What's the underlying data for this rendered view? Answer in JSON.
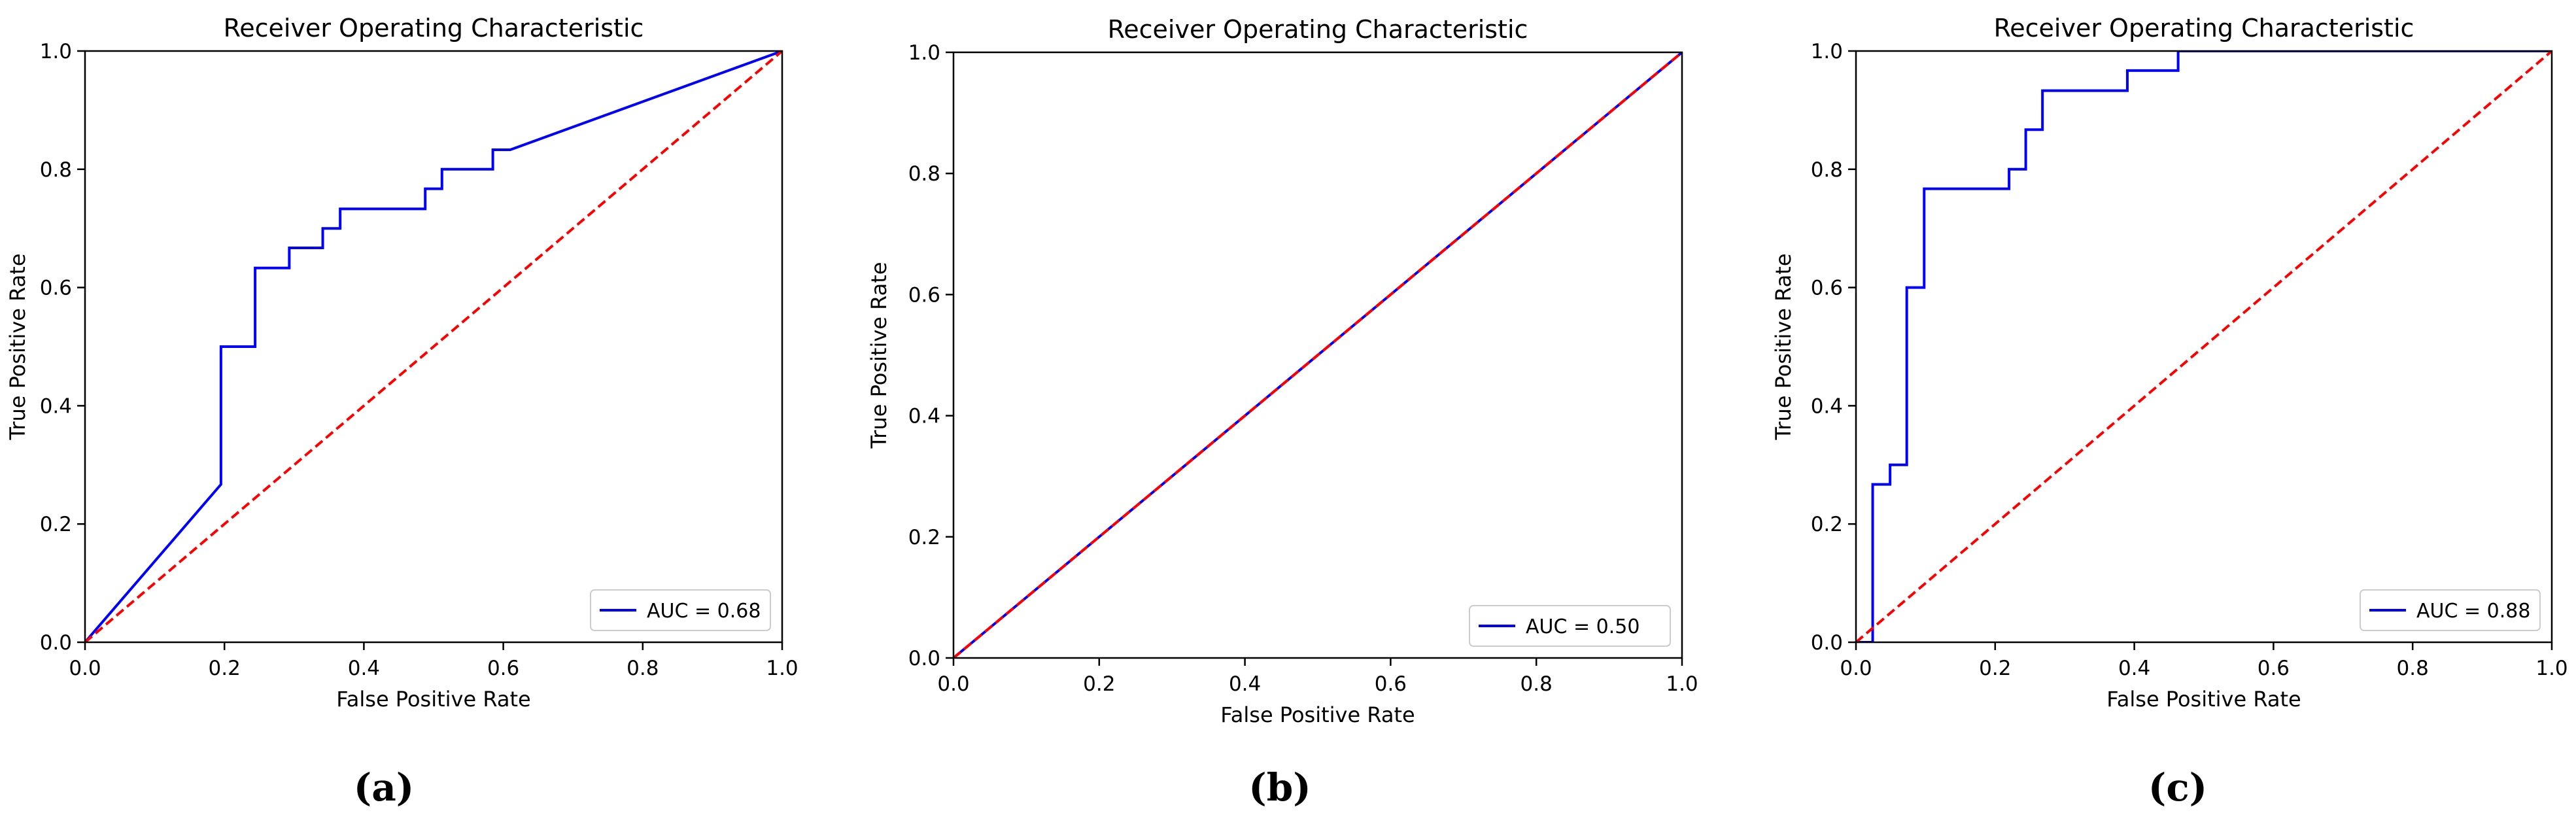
{
  "figure": {
    "panel_labels": [
      "(a)",
      "(b)",
      "(c)"
    ]
  },
  "colors": {
    "roc_line": "#0000ff",
    "chance_line": "#ff0000",
    "axes": "#000000",
    "background": "#ffffff"
  },
  "chart_data": [
    {
      "type": "line",
      "title": "Receiver Operating Characteristic",
      "xlabel": "False Positive Rate",
      "ylabel": "True Positive Rate",
      "xlim": [
        0,
        1
      ],
      "ylim": [
        0,
        1
      ],
      "xticks": [
        "0.0",
        "0.2",
        "0.4",
        "0.6",
        "0.8",
        "1.0"
      ],
      "yticks": [
        "0.0",
        "0.2",
        "0.4",
        "0.6",
        "0.8",
        "1.0"
      ],
      "grid": false,
      "legend_position": "lower-right",
      "legend_label": "AUC = 0.68",
      "series": [
        {
          "name": "AUC = 0.68",
          "style": "solid",
          "color": "#0000ff",
          "x": [
            0.0,
            0.195,
            0.195,
            0.244,
            0.244,
            0.293,
            0.293,
            0.341,
            0.341,
            0.366,
            0.366,
            0.488,
            0.488,
            0.512,
            0.512,
            0.585,
            0.585,
            0.61,
            1.0
          ],
          "y": [
            0.0,
            0.267,
            0.5,
            0.5,
            0.633,
            0.633,
            0.667,
            0.667,
            0.7,
            0.7,
            0.733,
            0.733,
            0.767,
            0.767,
            0.8,
            0.8,
            0.833,
            0.833,
            1.0
          ]
        },
        {
          "name": "",
          "style": "dashed",
          "color": "#ff0000",
          "x": [
            0,
            1
          ],
          "y": [
            0,
            1
          ]
        }
      ]
    },
    {
      "type": "line",
      "title": "Receiver Operating Characteristic",
      "xlabel": "False Positive Rate",
      "ylabel": "True Positive Rate",
      "xlim": [
        0,
        1
      ],
      "ylim": [
        0,
        1
      ],
      "xticks": [
        "0.0",
        "0.2",
        "0.4",
        "0.6",
        "0.8",
        "1.0"
      ],
      "yticks": [
        "0.0",
        "0.2",
        "0.4",
        "0.6",
        "0.8",
        "1.0"
      ],
      "grid": false,
      "legend_position": "lower-right",
      "legend_label": "AUC = 0.50",
      "series": [
        {
          "name": "AUC = 0.50",
          "style": "solid",
          "color": "#0000ff",
          "x": [
            0.0,
            1.0
          ],
          "y": [
            0.0,
            1.0
          ]
        },
        {
          "name": "",
          "style": "dashed",
          "color": "#ff0000",
          "x": [
            0,
            1
          ],
          "y": [
            0,
            1
          ]
        }
      ]
    },
    {
      "type": "line",
      "title": "Receiver Operating Characteristic",
      "xlabel": "False Positive Rate",
      "ylabel": "True Positive Rate",
      "xlim": [
        0,
        1
      ],
      "ylim": [
        0,
        1
      ],
      "xticks": [
        "0.0",
        "0.2",
        "0.4",
        "0.6",
        "0.8",
        "1.0"
      ],
      "yticks": [
        "0.0",
        "0.2",
        "0.4",
        "0.6",
        "0.8",
        "1.0"
      ],
      "grid": false,
      "legend_position": "lower-right",
      "legend_label": "AUC = 0.88",
      "series": [
        {
          "name": "AUC = 0.88",
          "style": "solid",
          "color": "#0000ff",
          "x": [
            0.0,
            0.024,
            0.024,
            0.049,
            0.049,
            0.073,
            0.073,
            0.098,
            0.098,
            0.22,
            0.22,
            0.244,
            0.244,
            0.268,
            0.268,
            0.39,
            0.39,
            0.463,
            0.463,
            1.0
          ],
          "y": [
            0.0,
            0.0,
            0.267,
            0.267,
            0.3,
            0.3,
            0.6,
            0.6,
            0.767,
            0.767,
            0.8,
            0.8,
            0.867,
            0.867,
            0.933,
            0.933,
            0.967,
            0.967,
            1.0,
            1.0
          ]
        },
        {
          "name": "",
          "style": "dashed",
          "color": "#ff0000",
          "x": [
            0,
            1
          ],
          "y": [
            0,
            1
          ]
        }
      ]
    }
  ]
}
